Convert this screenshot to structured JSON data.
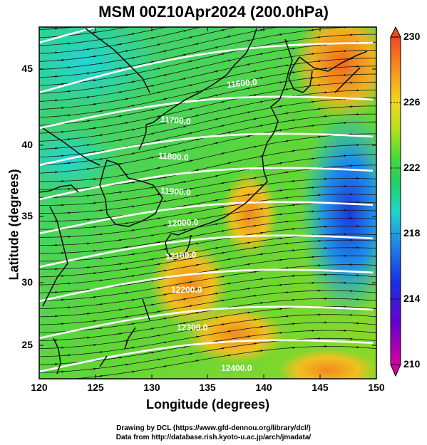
{
  "title": "MSM 00Z10Apr2024 (200.0hPa)",
  "xlabel": "Longitude (degrees)",
  "ylabel": "Latitude  (degrees)",
  "xticks": [
    "120",
    "125",
    "130",
    "135",
    "140",
    "145",
    "150"
  ],
  "yticks": [
    "25",
    "30",
    "35",
    "40",
    "45"
  ],
  "colorbar": {
    "ticks": [
      "230",
      "226",
      "222",
      "218",
      "214",
      "210"
    ],
    "range": [
      210,
      230
    ]
  },
  "contours": [
    "11600.0",
    "11700.0",
    "11800.0",
    "11900.0",
    "12000.0",
    "12100.0",
    "12200.0",
    "12300.0",
    "12400.0"
  ],
  "footer": {
    "line1": "Drawing by DCL (https://www.gfd-dennou.org/library/dcl/)",
    "line2": "Data from http://database.rish.kyoto-u.ac.jp/arch/jmadata/"
  },
  "map": {
    "lon_range": [
      120,
      150
    ],
    "lat_range": [
      22.5,
      47.8
    ],
    "field": "temperature (K)",
    "overlay": "wind vectors and geopotential height contours"
  }
}
